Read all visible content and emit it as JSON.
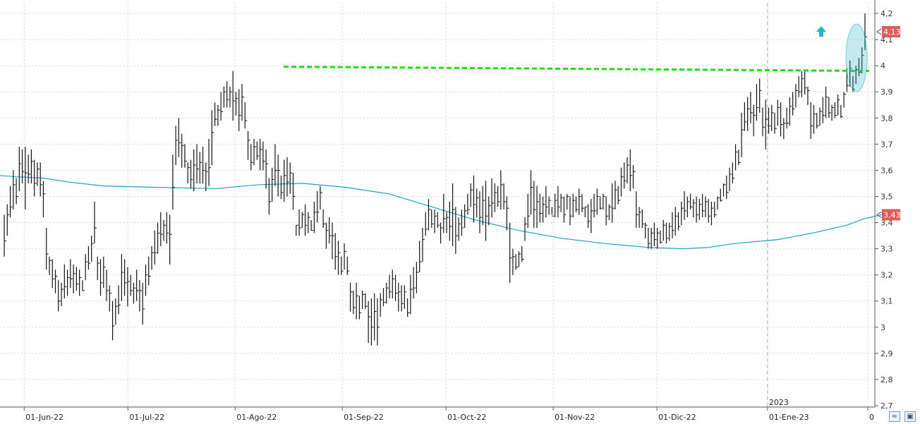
{
  "chart_data": {
    "type": "ohlc",
    "y_axis": {
      "position": "right",
      "ylim": [
        2.7,
        4.22
      ],
      "ticks": [
        "4,2",
        "4,1",
        "4",
        "3,9",
        "3,8",
        "3,7",
        "3,6",
        "3,5",
        "3,4",
        "3,3",
        "3,2",
        "3,1",
        "3",
        "2,9",
        "2,8",
        "2,7"
      ],
      "tick_values": [
        4.2,
        4.1,
        4.0,
        3.9,
        3.8,
        3.7,
        3.6,
        3.5,
        3.4,
        3.3,
        3.2,
        3.1,
        3.0,
        2.9,
        2.8,
        2.7
      ]
    },
    "x_axis": {
      "date_range": [
        "2022-05-25",
        "2023-01-31"
      ],
      "tick_labels": [
        "01-Jun-22",
        "01-Jul-22",
        "01-Ago-22",
        "01-Sep-22",
        "01-Oct-22",
        "01-Nov-22",
        "01-Dic-22",
        "01-Ene-23",
        "0"
      ],
      "tick_dates": [
        "2022-06-01",
        "2022-07-01",
        "2022-08-01",
        "2022-09-01",
        "2022-10-01",
        "2022-11-01",
        "2022-12-01",
        "2023-01-02",
        "2023-01-31"
      ],
      "year_marker": {
        "label": "2023",
        "date": "2023-01-02"
      }
    },
    "grid": true,
    "price_bars": [
      [
        3.43,
        3.27
      ],
      [
        3.47,
        3.35
      ],
      [
        3.54,
        3.42
      ],
      [
        3.6,
        3.45
      ],
      [
        3.57,
        3.47
      ],
      [
        3.69,
        3.52
      ],
      [
        3.68,
        3.55
      ],
      [
        3.69,
        3.45
      ],
      [
        3.66,
        3.55
      ],
      [
        3.68,
        3.55
      ],
      [
        3.64,
        3.5
      ],
      [
        3.63,
        3.54
      ],
      [
        3.63,
        3.5
      ],
      [
        3.56,
        3.42
      ],
      [
        3.38,
        3.22
      ],
      [
        3.27,
        3.2
      ],
      [
        3.26,
        3.15
      ],
      [
        3.22,
        3.13
      ],
      [
        3.18,
        3.06
      ],
      [
        3.17,
        3.08
      ],
      [
        3.24,
        3.11
      ],
      [
        3.22,
        3.12
      ],
      [
        3.26,
        3.15
      ],
      [
        3.24,
        3.13
      ],
      [
        3.23,
        3.14
      ],
      [
        3.22,
        3.12
      ],
      [
        3.18,
        3.14
      ],
      [
        3.28,
        3.18
      ],
      [
        3.31,
        3.22
      ],
      [
        3.35,
        3.25
      ],
      [
        3.48,
        3.32
      ],
      [
        3.27,
        3.18
      ],
      [
        3.26,
        3.12
      ],
      [
        3.27,
        3.15
      ],
      [
        3.22,
        3.1
      ],
      [
        3.16,
        3.06
      ],
      [
        3.1,
        2.95
      ],
      [
        3.11,
        3.01
      ],
      [
        3.16,
        3.05
      ],
      [
        3.28,
        3.1
      ],
      [
        3.26,
        3.12
      ],
      [
        3.23,
        3.08
      ],
      [
        3.2,
        3.12
      ],
      [
        3.17,
        3.09
      ],
      [
        3.22,
        3.1
      ],
      [
        3.18,
        3.06
      ],
      [
        3.17,
        3.01
      ],
      [
        3.24,
        3.12
      ],
      [
        3.27,
        3.16
      ],
      [
        3.31,
        3.22
      ],
      [
        3.37,
        3.24
      ],
      [
        3.4,
        3.28
      ],
      [
        3.44,
        3.31
      ],
      [
        3.41,
        3.33
      ],
      [
        3.44,
        3.32
      ],
      [
        3.43,
        3.24
      ],
      [
        3.66,
        3.45
      ],
      [
        3.77,
        3.62
      ],
      [
        3.8,
        3.65
      ],
      [
        3.74,
        3.61
      ],
      [
        3.7,
        3.61
      ],
      [
        3.63,
        3.55
      ],
      [
        3.64,
        3.53
      ],
      [
        3.68,
        3.52
      ],
      [
        3.7,
        3.55
      ],
      [
        3.67,
        3.55
      ],
      [
        3.69,
        3.55
      ],
      [
        3.63,
        3.52
      ],
      [
        3.72,
        3.54
      ],
      [
        3.83,
        3.62
      ],
      [
        3.86,
        3.77
      ],
      [
        3.85,
        3.77
      ],
      [
        3.9,
        3.79
      ],
      [
        3.92,
        3.84
      ],
      [
        3.94,
        3.84
      ],
      [
        3.92,
        3.84
      ],
      [
        3.98,
        3.79
      ],
      [
        3.9,
        3.81
      ],
      [
        3.91,
        3.75
      ],
      [
        3.93,
        3.79
      ],
      [
        3.86,
        3.76
      ],
      [
        3.75,
        3.64
      ],
      [
        3.7,
        3.6
      ],
      [
        3.72,
        3.62
      ],
      [
        3.71,
        3.64
      ],
      [
        3.72,
        3.6
      ],
      [
        3.71,
        3.6
      ],
      [
        3.68,
        3.53
      ],
      [
        3.57,
        3.43
      ],
      [
        3.61,
        3.48
      ],
      [
        3.7,
        3.54
      ],
      [
        3.66,
        3.5
      ],
      [
        3.58,
        3.49
      ],
      [
        3.64,
        3.48
      ],
      [
        3.65,
        3.5
      ],
      [
        3.63,
        3.51
      ],
      [
        3.59,
        3.45
      ],
      [
        3.39,
        3.35
      ],
      [
        3.45,
        3.35
      ],
      [
        3.44,
        3.38
      ],
      [
        3.47,
        3.35
      ],
      [
        3.44,
        3.36
      ],
      [
        3.41,
        3.37
      ],
      [
        3.48,
        3.36
      ],
      [
        3.52,
        3.4
      ],
      [
        3.54,
        3.45
      ],
      [
        3.45,
        3.38
      ],
      [
        3.4,
        3.3
      ],
      [
        3.42,
        3.32
      ],
      [
        3.4,
        3.26
      ],
      [
        3.36,
        3.22
      ],
      [
        3.33,
        3.2
      ],
      [
        3.27,
        3.2
      ],
      [
        3.32,
        3.22
      ],
      [
        3.27,
        3.2
      ],
      [
        3.17,
        3.06
      ],
      [
        3.14,
        3.05
      ],
      [
        3.17,
        3.03
      ],
      [
        3.12,
        3.03
      ],
      [
        3.14,
        3.07
      ],
      [
        3.13,
        3.07
      ],
      [
        3.1,
        2.94
      ],
      [
        3.11,
        2.93
      ],
      [
        3.13,
        2.95
      ],
      [
        3.11,
        2.93
      ],
      [
        3.13,
        3.04
      ],
      [
        3.15,
        3.08
      ],
      [
        3.17,
        3.09
      ],
      [
        3.2,
        3.11
      ],
      [
        3.22,
        3.11
      ],
      [
        3.2,
        3.1
      ],
      [
        3.17,
        3.06
      ],
      [
        3.16,
        3.06
      ],
      [
        3.16,
        3.07
      ],
      [
        3.11,
        3.04
      ],
      [
        3.2,
        3.05
      ],
      [
        3.23,
        3.11
      ],
      [
        3.25,
        3.13
      ],
      [
        3.33,
        3.21
      ],
      [
        3.38,
        3.25
      ],
      [
        3.44,
        3.35
      ],
      [
        3.49,
        3.37
      ],
      [
        3.45,
        3.38
      ],
      [
        3.45,
        3.36
      ],
      [
        3.44,
        3.38
      ],
      [
        3.4,
        3.32
      ],
      [
        3.51,
        3.36
      ],
      [
        3.44,
        3.36
      ],
      [
        3.48,
        3.33
      ],
      [
        3.55,
        3.31
      ],
      [
        3.46,
        3.28
      ],
      [
        3.42,
        3.33
      ],
      [
        3.45,
        3.35
      ],
      [
        3.47,
        3.38
      ],
      [
        3.51,
        3.43
      ],
      [
        3.55,
        3.46
      ],
      [
        3.58,
        3.4
      ],
      [
        3.53,
        3.42
      ],
      [
        3.52,
        3.36
      ],
      [
        3.54,
        3.39
      ],
      [
        3.56,
        3.33
      ],
      [
        3.5,
        3.39
      ],
      [
        3.57,
        3.42
      ],
      [
        3.55,
        3.44
      ],
      [
        3.54,
        3.46
      ],
      [
        3.6,
        3.45
      ],
      [
        3.55,
        3.45
      ],
      [
        3.5,
        3.37
      ],
      [
        3.4,
        3.17
      ],
      [
        3.3,
        3.2
      ],
      [
        3.28,
        3.22
      ],
      [
        3.29,
        3.23
      ],
      [
        3.31,
        3.25
      ],
      [
        3.42,
        3.33
      ],
      [
        3.51,
        3.38
      ],
      [
        3.6,
        3.43
      ],
      [
        3.56,
        3.38
      ],
      [
        3.54,
        3.38
      ],
      [
        3.51,
        3.4
      ],
      [
        3.5,
        3.4
      ],
      [
        3.54,
        3.42
      ],
      [
        3.5,
        3.43
      ],
      [
        3.46,
        3.43
      ],
      [
        3.51,
        3.42
      ],
      [
        3.54,
        3.42
      ],
      [
        3.51,
        3.44
      ],
      [
        3.5,
        3.4
      ],
      [
        3.51,
        3.45
      ],
      [
        3.5,
        3.39
      ],
      [
        3.51,
        3.42
      ],
      [
        3.5,
        3.44
      ],
      [
        3.53,
        3.43
      ],
      [
        3.51,
        3.44
      ],
      [
        3.46,
        3.42
      ],
      [
        3.47,
        3.38
      ],
      [
        3.49,
        3.36
      ],
      [
        3.51,
        3.42
      ],
      [
        3.53,
        3.43
      ],
      [
        3.5,
        3.45
      ],
      [
        3.51,
        3.45
      ],
      [
        3.5,
        3.39
      ],
      [
        3.47,
        3.41
      ],
      [
        3.55,
        3.4
      ],
      [
        3.56,
        3.45
      ],
      [
        3.54,
        3.47
      ],
      [
        3.61,
        3.5
      ],
      [
        3.63,
        3.53
      ],
      [
        3.65,
        3.55
      ],
      [
        3.68,
        3.52
      ],
      [
        3.62,
        3.53
      ],
      [
        3.52,
        3.38
      ],
      [
        3.46,
        3.38
      ],
      [
        3.45,
        3.38
      ],
      [
        3.4,
        3.34
      ],
      [
        3.38,
        3.3
      ],
      [
        3.38,
        3.3
      ],
      [
        3.4,
        3.31
      ],
      [
        3.38,
        3.3
      ],
      [
        3.37,
        3.32
      ],
      [
        3.41,
        3.33
      ],
      [
        3.4,
        3.32
      ],
      [
        3.4,
        3.33
      ],
      [
        3.44,
        3.34
      ],
      [
        3.46,
        3.35
      ],
      [
        3.44,
        3.37
      ],
      [
        3.48,
        3.39
      ],
      [
        3.52,
        3.41
      ],
      [
        3.5,
        3.42
      ],
      [
        3.51,
        3.45
      ],
      [
        3.49,
        3.42
      ],
      [
        3.5,
        3.4
      ],
      [
        3.49,
        3.41
      ],
      [
        3.51,
        3.42
      ],
      [
        3.5,
        3.42
      ],
      [
        3.49,
        3.4
      ],
      [
        3.48,
        3.39
      ],
      [
        3.48,
        3.42
      ],
      [
        3.5,
        3.45
      ],
      [
        3.53,
        3.48
      ],
      [
        3.55,
        3.5
      ],
      [
        3.58,
        3.49
      ],
      [
        3.61,
        3.52
      ],
      [
        3.63,
        3.55
      ],
      [
        3.7,
        3.6
      ],
      [
        3.68,
        3.62
      ],
      [
        3.82,
        3.65
      ],
      [
        3.86,
        3.75
      ],
      [
        3.88,
        3.75
      ],
      [
        3.9,
        3.78
      ],
      [
        3.85,
        3.73
      ],
      [
        3.93,
        3.79
      ],
      [
        3.95,
        3.82
      ],
      [
        3.84,
        3.73
      ],
      [
        3.87,
        3.68
      ],
      [
        3.84,
        3.74
      ],
      [
        3.85,
        3.75
      ],
      [
        3.82,
        3.74
      ],
      [
        3.87,
        3.77
      ],
      [
        3.86,
        3.73
      ],
      [
        3.8,
        3.72
      ],
      [
        3.84,
        3.76
      ],
      [
        3.88,
        3.77
      ],
      [
        3.9,
        3.81
      ],
      [
        3.93,
        3.84
      ],
      [
        3.96,
        3.88
      ],
      [
        3.98,
        3.88
      ],
      [
        3.98,
        3.89
      ],
      [
        3.92,
        3.85
      ],
      [
        3.86,
        3.72
      ],
      [
        3.85,
        3.74
      ],
      [
        3.82,
        3.76
      ],
      [
        3.84,
        3.77
      ],
      [
        3.88,
        3.78
      ],
      [
        3.92,
        3.8
      ],
      [
        3.88,
        3.8
      ],
      [
        3.85,
        3.79
      ],
      [
        3.86,
        3.8
      ],
      [
        3.89,
        3.81
      ],
      [
        3.85,
        3.8
      ],
      [
        3.9,
        3.84
      ],
      [
        3.99,
        3.9
      ],
      [
        4.02,
        3.92
      ],
      [
        3.96,
        3.9
      ],
      [
        4.0,
        3.93
      ],
      [
        4.03,
        3.96
      ],
      [
        4.07,
        3.97
      ],
      [
        4.2,
        4.06
      ]
    ],
    "moving_average": {
      "color": "#1aa3c4",
      "values": [
        [
          0,
          3.58
        ],
        [
          0.02,
          3.575
        ],
        [
          0.05,
          3.57
        ],
        [
          0.08,
          3.555
        ],
        [
          0.12,
          3.54
        ],
        [
          0.18,
          3.535
        ],
        [
          0.25,
          3.53
        ],
        [
          0.3,
          3.545
        ],
        [
          0.35,
          3.55
        ],
        [
          0.4,
          3.535
        ],
        [
          0.45,
          3.51
        ],
        [
          0.5,
          3.46
        ],
        [
          0.55,
          3.41
        ],
        [
          0.6,
          3.37
        ],
        [
          0.65,
          3.34
        ],
        [
          0.7,
          3.32
        ],
        [
          0.75,
          3.305
        ],
        [
          0.79,
          3.3
        ],
        [
          0.82,
          3.305
        ],
        [
          0.85,
          3.32
        ],
        [
          0.9,
          3.335
        ],
        [
          0.94,
          3.36
        ],
        [
          0.98,
          3.39
        ],
        [
          1.0,
          3.415
        ],
        [
          1.02,
          3.43
        ]
      ]
    },
    "resistance_level": {
      "value": 3.98,
      "color": "#22dd11"
    },
    "breakout_marker": {
      "color": "#26b6c2"
    },
    "last_price": {
      "label": "4,13",
      "value": 4.13,
      "color": "#e05a5a"
    },
    "ma_value": {
      "label": "3,43",
      "value": 3.43,
      "color": "#e05a5a"
    }
  },
  "controls": {
    "zoom_icon": "zoom-icon",
    "save_icon": "save-icon"
  }
}
